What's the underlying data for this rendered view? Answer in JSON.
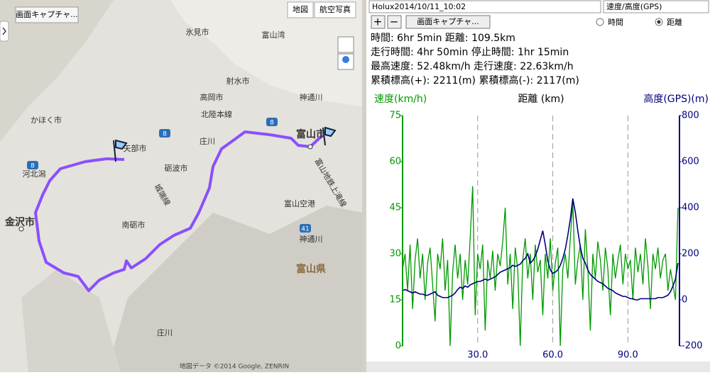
{
  "map": {
    "capture_button": "画面キャプチャ...",
    "map_types": [
      "地図",
      "航空写真"
    ],
    "labels": [
      "氷見市",
      "射水市",
      "高岡市",
      "北陸本線",
      "神通川",
      "かほく市",
      "富山市",
      "矢部市",
      "庄川",
      "砺波市",
      "河北潟",
      "金沢市",
      "城端線",
      "富山空港",
      "富山地鉄上滝線",
      "南砺市",
      "神通川",
      "富山県",
      "庄川",
      "富山湾"
    ],
    "roads": [
      "8",
      "8",
      "8",
      "41"
    ],
    "footer": "地図データ ©2014 Google, ZENRIN"
  },
  "toolbar": {
    "track": "Holux2014/10/11_10:02",
    "graph_type": "速度/高度(GPS)",
    "zoom_in": "+",
    "zoom_out": "−",
    "capture_button": "画面キャプチャ...",
    "x_modes": [
      "時間",
      "距離"
    ],
    "selected_x_mode_index": 1
  },
  "stats": [
    "時間: 6hr 5min 距離: 109.5km",
    "走行時間: 4hr 50min 停止時間: 1hr 15min",
    "最高速度: 52.48km/h 走行速度: 22.63km/h",
    "累積標高(+): 2211(m) 累積標高(-): 2117(m)"
  ],
  "chart_data": {
    "type": "line",
    "xlabel": "距離 (km)",
    "ylabel": "速度(km/h)",
    "y2label": "高度(GPS)(m)",
    "x": [
      0,
      1,
      2,
      3,
      4,
      5,
      6,
      7,
      8,
      9,
      10,
      11,
      12,
      13,
      14,
      15,
      16,
      17,
      18,
      19,
      20,
      21,
      22,
      23,
      24,
      25,
      26,
      27,
      28,
      29,
      30,
      31,
      32,
      33,
      34,
      35,
      36,
      37,
      38,
      39,
      40,
      41,
      42,
      43,
      44,
      45,
      46,
      47,
      48,
      49,
      50,
      51,
      52,
      53,
      54,
      55,
      56,
      57,
      58,
      59,
      60,
      61,
      62,
      63,
      64,
      65,
      66,
      67,
      68,
      69,
      70,
      71,
      72,
      73,
      74,
      75,
      76,
      77,
      78,
      79,
      80,
      81,
      82,
      83,
      84,
      85,
      86,
      87,
      88,
      89,
      90,
      91,
      92,
      93,
      94,
      95,
      96,
      97,
      98,
      99,
      100,
      101,
      102,
      103,
      104,
      105,
      106,
      107,
      108,
      109,
      110
    ],
    "series": [
      {
        "color": "#009900",
        "values": [
          25,
          30,
          18,
          33,
          12,
          28,
          35,
          22,
          30,
          15,
          27,
          32,
          20,
          8,
          30,
          25,
          35,
          18,
          28,
          0,
          24,
          33,
          22,
          30,
          15,
          28,
          20,
          35,
          52,
          10,
          30,
          25,
          33,
          5,
          28,
          22,
          31,
          18,
          30,
          26,
          34,
          45,
          20,
          30,
          12,
          32,
          25,
          0,
          28,
          35,
          22,
          30,
          15,
          33,
          24,
          28,
          10,
          30,
          22,
          35,
          18,
          27,
          32,
          0,
          25,
          30,
          22,
          35,
          47,
          20,
          28,
          33,
          15,
          38,
          25,
          5,
          30,
          22,
          34,
          28,
          18,
          32,
          25,
          10,
          30,
          22,
          28,
          33,
          20,
          30,
          25,
          28,
          15,
          32,
          24,
          30,
          20,
          35,
          26,
          12,
          30,
          25,
          32,
          22,
          28,
          30,
          18,
          25,
          20,
          15,
          45
        ]
      },
      {
        "color": "#000080",
        "axis": "y2",
        "values": [
          40,
          45,
          40,
          35,
          30,
          35,
          30,
          25,
          25,
          20,
          20,
          25,
          30,
          35,
          20,
          15,
          10,
          10,
          10,
          15,
          20,
          30,
          45,
          55,
          50,
          60,
          55,
          65,
          70,
          75,
          80,
          80,
          85,
          90,
          85,
          90,
          95,
          100,
          110,
          120,
          125,
          130,
          135,
          140,
          150,
          145,
          150,
          155,
          170,
          180,
          200,
          160,
          170,
          190,
          220,
          260,
          300,
          240,
          170,
          130,
          115,
          120,
          130,
          150,
          180,
          220,
          280,
          350,
          440,
          380,
          300,
          230,
          180,
          160,
          130,
          110,
          100,
          90,
          80,
          75,
          70,
          60,
          50,
          45,
          40,
          30,
          25,
          20,
          15,
          15,
          10,
          5,
          5,
          0,
          0,
          5,
          5,
          5,
          5,
          5,
          5,
          5,
          10,
          10,
          10,
          15,
          20,
          35,
          60,
          90,
          160
        ]
      }
    ],
    "xlim": [
      0,
      110.6
    ],
    "xticks": [
      {
        "value": 30,
        "label": "30.0"
      },
      {
        "value": 60,
        "label": "60.0"
      },
      {
        "value": 90,
        "label": "90.0"
      }
    ],
    "ylim": [
      0,
      75
    ],
    "yticks": [
      0,
      15,
      30,
      45,
      60,
      75
    ],
    "y2lim": [
      -200,
      800
    ],
    "y2ticks": [
      -200,
      0,
      200,
      400,
      600,
      800
    ],
    "grid": true
  }
}
